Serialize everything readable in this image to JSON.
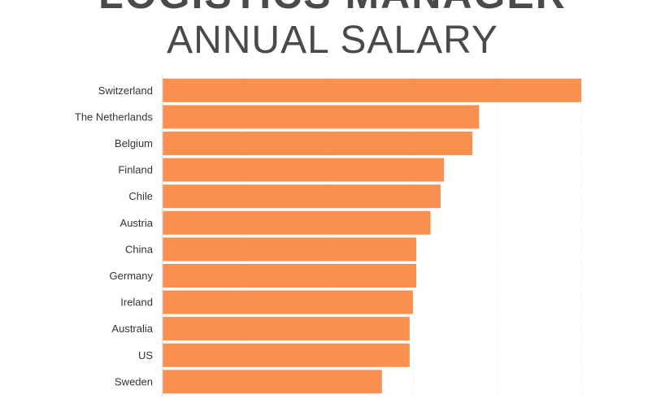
{
  "chart_data": {
    "type": "bar",
    "orientation": "horizontal",
    "title": "LOGISTICS MANAGER",
    "subtitle": "ANNUAL SALARY",
    "categories": [
      "Switzerland",
      "The Netherlands",
      "Belgium",
      "Finland",
      "Chile",
      "Austria",
      "China",
      "Germany",
      "Ireland",
      "Australia",
      "US",
      "Sweden"
    ],
    "series": [
      {
        "values": [
          100,
          75.6,
          74.0,
          67.2,
          66.4,
          64.0,
          60.6,
          60.6,
          59.8,
          59.0,
          59.0,
          52.4
        ]
      }
    ],
    "xlim": [
      0,
      100
    ],
    "bar_color": "#fa9050",
    "grid": true,
    "legend": "none"
  }
}
